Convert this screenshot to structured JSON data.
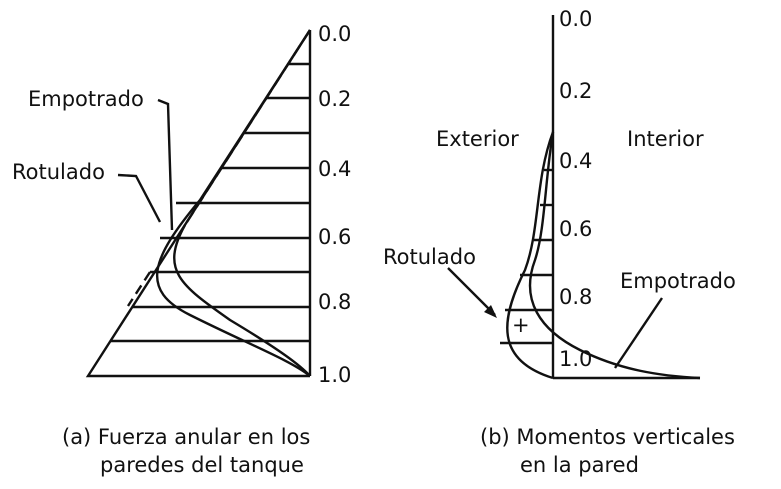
{
  "panel_a": {
    "axis_labels": [
      "0.0",
      "0.2",
      "0.4",
      "0.6",
      "0.8",
      "1.0"
    ],
    "label_fixed": "Empotrado",
    "label_hinged": "Rotulado",
    "caption": [
      "(a) Fuerza anular en los",
      "paredes del tanque"
    ]
  },
  "panel_b": {
    "axis_labels": [
      "0.0",
      "0.2",
      "0.4",
      "0.6",
      "0.8",
      "1.0"
    ],
    "label_exterior": "Exterior",
    "label_interior": "Interior",
    "label_hinged": "Rotulado",
    "label_fixed": "Empotrado",
    "sign": "+",
    "caption": [
      "(b) Momentos verticales",
      "en la pared"
    ]
  }
}
